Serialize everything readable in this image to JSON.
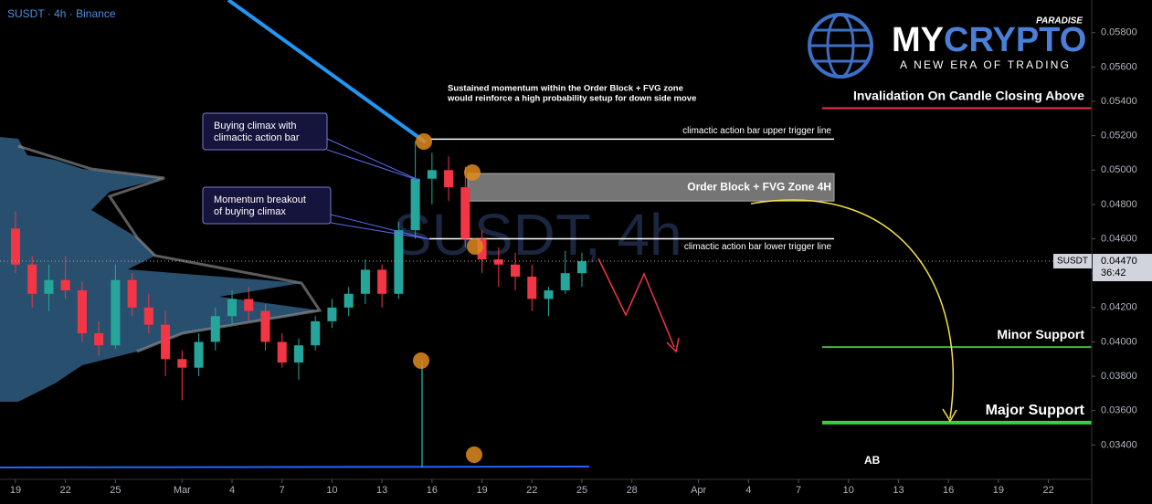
{
  "chart_data": {
    "type": "candlestick",
    "title": "SUSDT · 4h · Binance",
    "watermark": "SUSDT, 4h",
    "x": [
      0,
      1,
      2,
      3,
      4,
      5,
      6,
      7,
      8,
      9,
      10,
      11,
      12,
      13,
      14,
      15,
      16,
      17,
      18,
      19,
      20,
      21,
      22,
      23,
      24,
      25,
      26,
      27,
      28,
      29,
      30,
      31,
      32,
      33,
      34
    ],
    "open": [
      0.0466,
      0.0445,
      0.0428,
      0.0436,
      0.043,
      0.0405,
      0.0398,
      0.0436,
      0.042,
      0.041,
      0.039,
      0.0385,
      0.04,
      0.0415,
      0.0425,
      0.0418,
      0.04,
      0.0388,
      0.0398,
      0.0412,
      0.042,
      0.0428,
      0.0442,
      0.0428,
      0.0465,
      0.0495,
      0.05,
      0.049,
      0.046,
      0.0448,
      0.0445,
      0.0438,
      0.0425,
      0.043,
      0.044
    ],
    "high": [
      0.0476,
      0.045,
      0.0445,
      0.045,
      0.0435,
      0.0412,
      0.0445,
      0.044,
      0.0428,
      0.0418,
      0.0395,
      0.0405,
      0.042,
      0.043,
      0.0432,
      0.0422,
      0.0405,
      0.0402,
      0.0415,
      0.0425,
      0.0432,
      0.0448,
      0.0445,
      0.047,
      0.0517,
      0.051,
      0.0508,
      0.0502,
      0.0465,
      0.0455,
      0.0452,
      0.0445,
      0.0432,
      0.0453,
      0.0452
    ],
    "low": [
      0.044,
      0.042,
      0.0418,
      0.0425,
      0.04,
      0.0392,
      0.0396,
      0.0415,
      0.0405,
      0.038,
      0.0366,
      0.038,
      0.0395,
      0.041,
      0.0412,
      0.0395,
      0.0385,
      0.0378,
      0.0395,
      0.0408,
      0.0415,
      0.0422,
      0.042,
      0.0425,
      0.046,
      0.048,
      0.0482,
      0.0455,
      0.044,
      0.0432,
      0.043,
      0.0418,
      0.0415,
      0.0428,
      0.0432
    ],
    "close": [
      0.0445,
      0.0428,
      0.0436,
      0.043,
      0.0405,
      0.0398,
      0.0436,
      0.042,
      0.041,
      0.039,
      0.0385,
      0.04,
      0.0415,
      0.0425,
      0.0418,
      0.04,
      0.0388,
      0.0398,
      0.0412,
      0.042,
      0.0428,
      0.0442,
      0.0428,
      0.0465,
      0.0495,
      0.05,
      0.049,
      0.046,
      0.0448,
      0.0445,
      0.0438,
      0.0425,
      0.043,
      0.044,
      0.0447
    ],
    "up_color": "#26a69a",
    "down_color": "#f23645",
    "xlim": [
      -0.93,
      64.6
    ],
    "ylim": [
      0.032,
      0.0599
    ],
    "xticks": [
      {
        "value": 0,
        "label": "19"
      },
      {
        "value": 3,
        "label": "22"
      },
      {
        "value": 6,
        "label": "25"
      },
      {
        "value": 10,
        "label": "Mar"
      },
      {
        "value": 13,
        "label": "4"
      },
      {
        "value": 16,
        "label": "7"
      },
      {
        "value": 19,
        "label": "10"
      },
      {
        "value": 22,
        "label": "13"
      },
      {
        "value": 25,
        "label": "16"
      },
      {
        "value": 28,
        "label": "19"
      },
      {
        "value": 31,
        "label": "22"
      },
      {
        "value": 34,
        "label": "25"
      },
      {
        "value": 37,
        "label": "28"
      },
      {
        "value": 41,
        "label": "Apr"
      },
      {
        "value": 44,
        "label": "4"
      },
      {
        "value": 47,
        "label": "7"
      },
      {
        "value": 50,
        "label": "10"
      },
      {
        "value": 53,
        "label": "13"
      },
      {
        "value": 56,
        "label": "16"
      },
      {
        "value": 59,
        "label": "19"
      },
      {
        "value": 62,
        "label": "22"
      }
    ],
    "yticks": [
      {
        "value": 0.034,
        "label": "0.03400"
      },
      {
        "value": 0.036,
        "label": "0.03600"
      },
      {
        "value": 0.038,
        "label": "0.03800"
      },
      {
        "value": 0.04,
        "label": "0.04000"
      },
      {
        "value": 0.042,
        "label": "0.04200"
      },
      {
        "value": 0.044,
        "label": "0.04400"
      },
      {
        "value": 0.046,
        "label": "0.04600"
      },
      {
        "value": 0.048,
        "label": "0.04800"
      },
      {
        "value": 0.05,
        "label": "0.05000"
      },
      {
        "value": 0.052,
        "label": "0.05200"
      },
      {
        "value": 0.054,
        "label": "0.05400"
      },
      {
        "value": 0.056,
        "label": "0.05600"
      },
      {
        "value": 0.058,
        "label": "0.05800"
      }
    ],
    "last_price": {
      "value": 0.0447,
      "label": "0.04470",
      "symbol": "SUSDT",
      "countdown": "36:42"
    },
    "levels": [
      {
        "label": "Invalidation On Candle Closing Above",
        "value": 0.0536,
        "color": "#f23645",
        "width": 2
      },
      {
        "label": "Minor Support",
        "value": 0.0397,
        "color": "#4caf50",
        "width": 2
      },
      {
        "label": "Major Support",
        "value": 0.0353,
        "color": "#3ad13a",
        "width": 4
      }
    ],
    "trigger_lines": [
      {
        "label": "climactic action bar upper trigger line",
        "value": 0.0518
      },
      {
        "label": "climactic action bar lower trigger line",
        "value": 0.046
      }
    ],
    "zone": {
      "label": "Order Block + FVG Zone 4H",
      "low": 0.0482,
      "high": 0.0498
    },
    "note": [
      "Sustained momentum within the Order Block + FVG zone",
      "would reinforce a high probability setup for down side move"
    ],
    "callouts": [
      [
        "Buying climax with",
        "climactic action bar"
      ],
      [
        "Momentum breakout",
        "of buying climax"
      ]
    ],
    "pattern_label": "AB",
    "logo": {
      "brand_a": "MY",
      "brand_b": "CRYPTO",
      "tag": "PARADISE",
      "slogan": "A NEW ERA OF TRADING"
    }
  }
}
